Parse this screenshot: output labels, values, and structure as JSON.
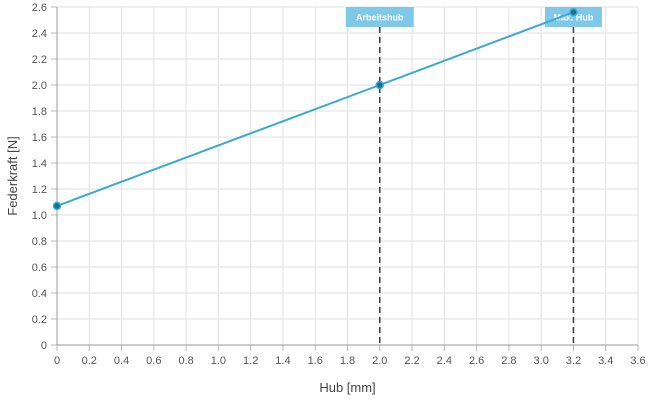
{
  "chart_data": {
    "type": "line",
    "xlabel": "Hub [mm]",
    "ylabel": "Federkraft [N]",
    "xlim": [
      0,
      3.6
    ],
    "ylim": [
      0,
      2.6
    ],
    "xticks": [
      "0",
      "0.2",
      "0.4",
      "0.6",
      "0.8",
      "1.0",
      "1.2",
      "1.4",
      "1.6",
      "1.8",
      "2.0",
      "2.2",
      "2.4",
      "2.6",
      "2.8",
      "3.0",
      "3.2",
      "3.4",
      "3.6"
    ],
    "yticks": [
      "0",
      "0.2",
      "0.4",
      "0.6",
      "0.8",
      "1.0",
      "1.2",
      "1.4",
      "1.6",
      "1.8",
      "2.0",
      "2.2",
      "2.4",
      "2.6"
    ],
    "grid": true,
    "series": [
      {
        "x": [
          0,
          2.0,
          3.2
        ],
        "y": [
          1.07,
          2.0,
          2.56
        ],
        "color": "#39a9d6"
      }
    ],
    "annotations": [
      {
        "label": "Arbeitshub",
        "x": 2.0,
        "color": "#7ec8e8"
      },
      {
        "label": "Max. Hub",
        "x": 3.2,
        "color": "#7ec8e8"
      }
    ]
  }
}
